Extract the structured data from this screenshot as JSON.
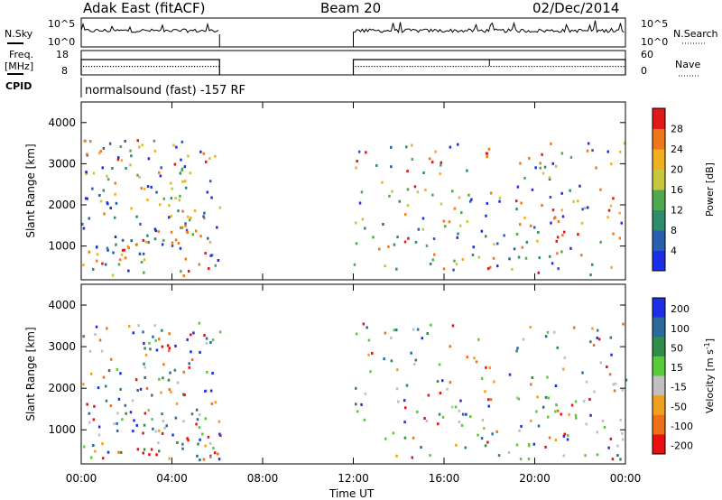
{
  "header": {
    "station": "Adak East (fitACF)",
    "beam": "Beam 20",
    "date": "02/Dec/2014"
  },
  "panels": {
    "nsky_label": "N.Sky",
    "nsky_ticks": [
      "10^5",
      "10^0"
    ],
    "nsearch_label": "N.Search",
    "nsearch_ticks": [
      "10^5",
      "10^0"
    ],
    "freq_label_1": "Freq.",
    "freq_label_2": "[MHz]",
    "freq_ticks": [
      "18",
      "8"
    ],
    "nave_label": "Nave",
    "nave_ticks": [
      "60",
      "0"
    ],
    "cpid_label": "CPID",
    "cpid_text": "normalsound (fast) -157 RF"
  },
  "chart_data": [
    {
      "type": "heatmap",
      "title": "Power",
      "ylabel": "Slant Range [km]",
      "xlabel": "",
      "ylim": [
        180,
        4500
      ],
      "y_ticks": [
        1000,
        2000,
        3000,
        4000
      ],
      "x_ticks": [
        "00:00",
        "04:00",
        "08:00",
        "12:00",
        "16:00",
        "20:00",
        "00:00"
      ],
      "x_range_hours": [
        0,
        24
      ],
      "colorbar": {
        "label": "Power [dB]",
        "ticks": [
          4,
          8,
          12,
          16,
          20,
          24,
          28
        ],
        "colors": [
          "#1c2fe6",
          "#2a5fb0",
          "#2f8c6a",
          "#4faa4f",
          "#c8c83c",
          "#f0b020",
          "#f07818",
          "#e01818"
        ]
      },
      "data_windows_hours": [
        [
          0,
          6.1
        ],
        [
          12.0,
          24
        ]
      ],
      "features": [
        {
          "x": [
            0.3,
            5.6
          ],
          "range_km": [
            700,
            1500
          ],
          "level": 25
        },
        {
          "x": [
            3.6,
            5.2
          ],
          "range_km": [
            1500,
            3400
          ],
          "level": 20
        },
        {
          "x": [
            12.2,
            18.0
          ],
          "range_km": [
            1100,
            1500
          ],
          "level": 8
        },
        {
          "x": [
            16.2,
            17.8
          ],
          "range_km": [
            300,
            900
          ],
          "level": 18
        },
        {
          "x": [
            19.0,
            24.0
          ],
          "range_km": [
            700,
            2200
          ],
          "level": 26
        }
      ]
    },
    {
      "type": "heatmap",
      "title": "Velocity",
      "ylabel": "Slant Range [km]",
      "xlabel": "Time UT",
      "ylim": [
        180,
        4500
      ],
      "y_ticks": [
        1000,
        2000,
        3000,
        4000
      ],
      "x_ticks": [
        "00:00",
        "04:00",
        "08:00",
        "12:00",
        "16:00",
        "20:00",
        "00:00"
      ],
      "x_range_hours": [
        0,
        24
      ],
      "colorbar": {
        "label": "Velocity [m s^-1]",
        "ticks": [
          200,
          100,
          50,
          15,
          -15,
          -50,
          -100,
          -200
        ],
        "colors": [
          "#1c2fe6",
          "#2a6a9a",
          "#2f8c4a",
          "#58cc38",
          "#c0c0c0",
          "#f0a020",
          "#f07018",
          "#e81010"
        ]
      },
      "data_windows_hours": [
        [
          0,
          6.1
        ],
        [
          12.0,
          24
        ]
      ],
      "features": [
        {
          "x": [
            0.3,
            5.6
          ],
          "range_km": [
            700,
            1500
          ],
          "velocity": 0
        },
        {
          "x": [
            12.2,
            18.0
          ],
          "range_km": [
            1100,
            1500
          ],
          "velocity": 20
        },
        {
          "x": [
            19.0,
            24.0
          ],
          "range_km": [
            700,
            2200
          ],
          "velocity": 0
        }
      ]
    }
  ]
}
